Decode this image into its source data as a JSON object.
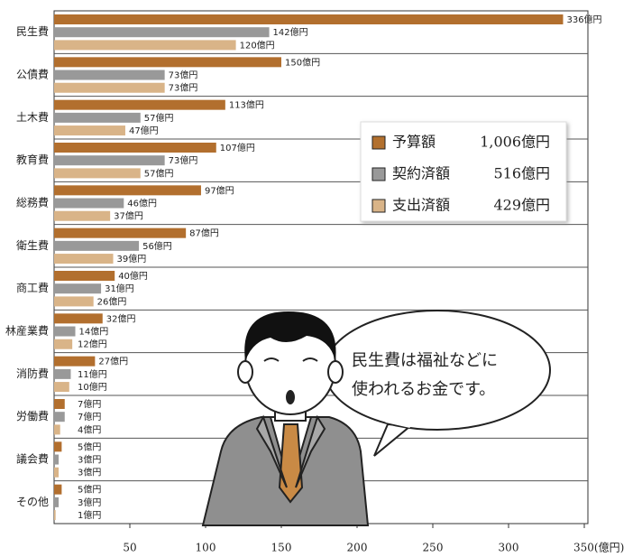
{
  "chart_data": {
    "type": "hbar",
    "categories": [
      "民生費",
      "公債費",
      "土木費",
      "教育費",
      "総務費",
      "衛生費",
      "商工費",
      "林産業費",
      "消防費",
      "労働費",
      "議会費",
      "その他"
    ],
    "series": [
      {
        "name": "予算額",
        "color": "#b26f2e",
        "total_label": "1,006億円",
        "values": [
          336,
          150,
          113,
          107,
          97,
          87,
          40,
          32,
          27,
          7,
          5,
          5
        ],
        "value_labels": [
          "336億円",
          "150億円",
          "113億円",
          "107億円",
          "97億円",
          "87億円",
          "40億円",
          "32億円",
          "27億円",
          "7億円",
          "5億円",
          "5億円"
        ]
      },
      {
        "name": "契約済額",
        "color": "#999999",
        "total_label": "516億円",
        "values": [
          142,
          73,
          57,
          73,
          46,
          56,
          31,
          14,
          11,
          7,
          3,
          3
        ],
        "value_labels": [
          "142億円",
          "73億円",
          "57億円",
          "73億円",
          "46億円",
          "56億円",
          "31億円",
          "14億円",
          "11億円",
          "7億円",
          "3億円",
          "3億円"
        ]
      },
      {
        "name": "支出済額",
        "color": "#d9b488",
        "total_label": "429億円",
        "values": [
          120,
          73,
          47,
          57,
          37,
          39,
          26,
          12,
          10,
          4,
          3,
          1
        ],
        "value_labels": [
          "120億円",
          "73億円",
          "47億円",
          "57億円",
          "37億円",
          "39億円",
          "26億円",
          "12億円",
          "10億円",
          "4億円",
          "3億円",
          "1億円"
        ]
      }
    ],
    "xlim": [
      0,
      350
    ],
    "xticks": [
      50,
      100,
      150,
      200,
      250,
      300,
      {
        "value": 350,
        "label": "350(億円)"
      }
    ],
    "annotation": [
      "民生費は福祉などに",
      "使われるお金です。"
    ]
  }
}
